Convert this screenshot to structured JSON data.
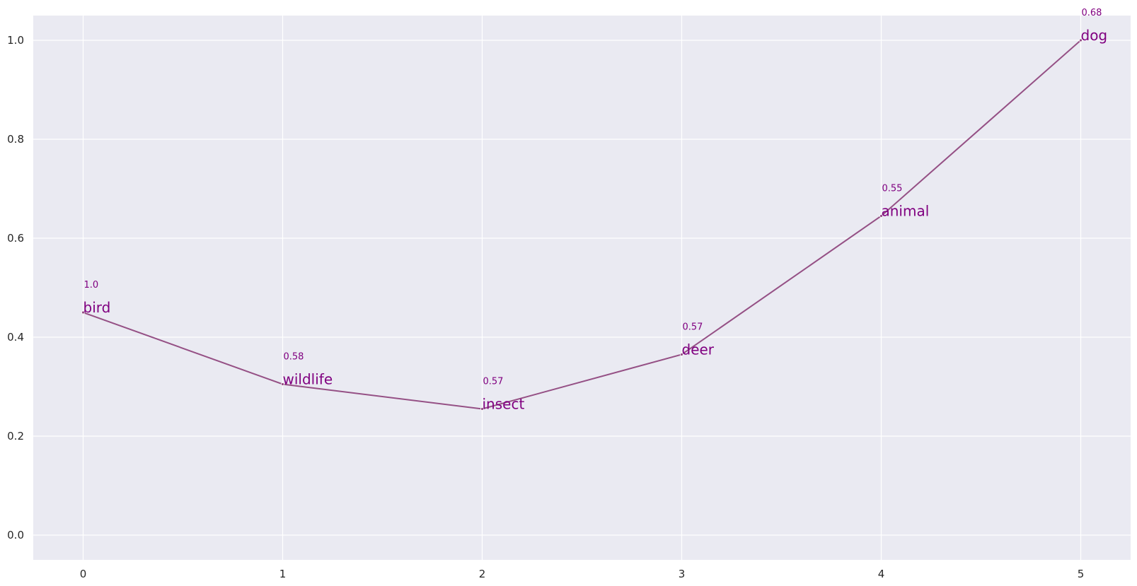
{
  "chart_data": {
    "type": "line",
    "x": [
      0,
      1,
      2,
      3,
      4,
      5
    ],
    "y": [
      0.45,
      0.305,
      0.255,
      0.365,
      0.645,
      1.0
    ],
    "point_labels": [
      "bird",
      "wildlife",
      "insect",
      "deer",
      "animal",
      "dog"
    ],
    "score_labels": [
      "1.0",
      "0.58",
      "0.57",
      "0.57",
      "0.55",
      "0.68"
    ],
    "xticks": [
      "0",
      "1",
      "2",
      "3",
      "4",
      "5"
    ],
    "yticks": [
      "0.0",
      "0.2",
      "0.4",
      "0.6",
      "0.8",
      "1.0"
    ],
    "xlim": [
      -0.25,
      5.25
    ],
    "ylim": [
      -0.05,
      1.05
    ],
    "title": "",
    "xlabel": "",
    "ylabel": "",
    "grid": true,
    "colors": {
      "background": "#eaeaf2",
      "grid": "#ffffff",
      "line": "#955085",
      "labels": "#800080"
    }
  }
}
